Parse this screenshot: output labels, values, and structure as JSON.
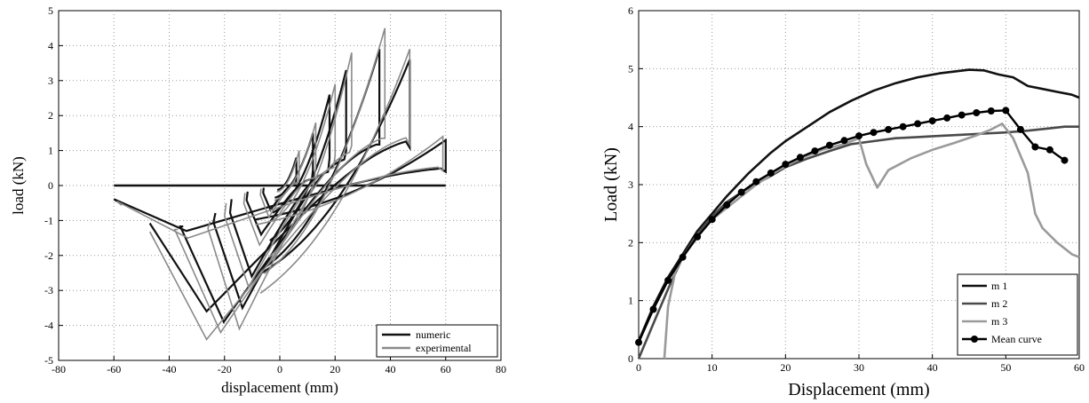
{
  "chart_data": [
    {
      "type": "line",
      "xlabel": "displacement (mm)",
      "ylabel": "load (kN)",
      "xlim": [
        -80,
        80
      ],
      "ylim": [
        -5,
        5
      ],
      "xticks": [
        -80,
        -60,
        -40,
        -20,
        0,
        20,
        40,
        60,
        80
      ],
      "yticks": [
        -5,
        -4,
        -3,
        -2,
        -1,
        0,
        1,
        2,
        3,
        4,
        5
      ],
      "grid": true,
      "legend_position": "bottom-right",
      "series": [
        {
          "name": "numeric",
          "color": "#111111",
          "cycles": [
            {
              "amp": 6,
              "peak_pos": 0.8,
              "peak_neg": -0.7,
              "pinch": 0.18
            },
            {
              "amp": 12,
              "peak_pos": 1.5,
              "peak_neg": -1.4,
              "pinch": 0.25
            },
            {
              "amp": 18,
              "peak_pos": 2.6,
              "peak_neg": -2.6,
              "pinch": 0.3
            },
            {
              "amp": 24,
              "peak_pos": 3.3,
              "peak_neg": -3.5,
              "pinch": 0.45
            },
            {
              "amp": 36,
              "peak_pos": 3.9,
              "peak_neg": -3.9,
              "pinch": 0.6
            },
            {
              "amp": 47,
              "peak_pos": 3.6,
              "peak_neg": -3.6,
              "pinch": 0.7
            },
            {
              "amp": 60,
              "peak_pos": 1.3,
              "peak_neg": -1.3,
              "pinch": 0.75
            }
          ],
          "tail": [
            [
              -60,
              0
            ],
            [
              60,
              0
            ]
          ]
        },
        {
          "name": "experimental",
          "color": "#8a8a8a",
          "cycles": [
            {
              "amp": 7,
              "peak_pos": 1.0,
              "peak_neg": -0.9,
              "pinch": 0.2
            },
            {
              "amp": 13,
              "peak_pos": 1.8,
              "peak_neg": -1.7,
              "pinch": 0.25
            },
            {
              "amp": 20,
              "peak_pos": 2.9,
              "peak_neg": -2.9,
              "pinch": 0.35
            },
            {
              "amp": 26,
              "peak_pos": 3.8,
              "peak_neg": -4.1,
              "pinch": 0.5
            },
            {
              "amp": 38,
              "peak_pos": 4.5,
              "peak_neg": -4.2,
              "pinch": 0.6
            },
            {
              "amp": 47,
              "peak_pos": 3.9,
              "peak_neg": -4.4,
              "pinch": 0.7
            },
            {
              "amp": 59,
              "peak_pos": 1.4,
              "peak_neg": -1.5,
              "pinch": 0.75
            }
          ]
        }
      ]
    },
    {
      "type": "line",
      "xlabel": "Displacement (mm)",
      "ylabel": "Load (kN)",
      "xlim": [
        0,
        60
      ],
      "ylim": [
        0,
        6
      ],
      "xticks": [
        0,
        10,
        20,
        30,
        40,
        50,
        60
      ],
      "yticks": [
        0,
        1,
        2,
        3,
        4,
        5,
        6
      ],
      "grid": true,
      "legend_position": "bottom-right",
      "series": [
        {
          "name": "m 1",
          "color": "#111111",
          "x": [
            0,
            2,
            4,
            6,
            8,
            10,
            12,
            15,
            18,
            20,
            23,
            26,
            29,
            32,
            35,
            38,
            41,
            43,
            45,
            47,
            49,
            51,
            53,
            55,
            57,
            59,
            60
          ],
          "y": [
            0.3,
            0.9,
            1.4,
            1.8,
            2.2,
            2.5,
            2.8,
            3.2,
            3.55,
            3.75,
            4.0,
            4.25,
            4.45,
            4.62,
            4.75,
            4.85,
            4.92,
            4.95,
            4.98,
            4.97,
            4.9,
            4.85,
            4.7,
            4.65,
            4.6,
            4.55,
            4.5
          ]
        },
        {
          "name": "m 2",
          "color": "#4a4a4a",
          "x": [
            0,
            2,
            4,
            6,
            8,
            10,
            12,
            15,
            18,
            20,
            23,
            26,
            29,
            32,
            35,
            38,
            41,
            44,
            47,
            50,
            53,
            56,
            58,
            60
          ],
          "y": [
            0.0,
            0.6,
            1.2,
            1.75,
            2.15,
            2.45,
            2.7,
            2.95,
            3.15,
            3.3,
            3.45,
            3.58,
            3.7,
            3.75,
            3.8,
            3.82,
            3.84,
            3.86,
            3.88,
            3.9,
            3.93,
            3.97,
            4.0,
            4.0
          ]
        },
        {
          "name": "m 3",
          "color": "#9a9a9a",
          "x": [
            3.5,
            4,
            5,
            6,
            8,
            10,
            13,
            16,
            19,
            22,
            25,
            28,
            30,
            31,
            32.5,
            34,
            37,
            40,
            43,
            46,
            48,
            49.5,
            51,
            53,
            54,
            55,
            57,
            59,
            60
          ],
          "y": [
            0.0,
            0.9,
            1.5,
            1.75,
            2.1,
            2.4,
            2.7,
            3.0,
            3.25,
            3.45,
            3.6,
            3.7,
            3.8,
            3.35,
            2.95,
            3.25,
            3.45,
            3.6,
            3.72,
            3.85,
            3.95,
            4.05,
            3.8,
            3.2,
            2.5,
            2.25,
            2.0,
            1.8,
            1.75
          ]
        },
        {
          "name": "Mean curve",
          "color": "#000000",
          "markers": true,
          "x": [
            0,
            2,
            4,
            6,
            8,
            10,
            12,
            14,
            16,
            18,
            20,
            22,
            24,
            26,
            28,
            30,
            32,
            34,
            36,
            38,
            40,
            42,
            44,
            46,
            48,
            50,
            52,
            54,
            56,
            58
          ],
          "y": [
            0.28,
            0.85,
            1.35,
            1.75,
            2.1,
            2.4,
            2.65,
            2.87,
            3.05,
            3.2,
            3.35,
            3.47,
            3.58,
            3.68,
            3.76,
            3.84,
            3.9,
            3.95,
            4.0,
            4.05,
            4.1,
            4.15,
            4.2,
            4.24,
            4.27,
            4.28,
            3.95,
            3.65,
            3.6,
            3.42
          ]
        }
      ]
    }
  ]
}
